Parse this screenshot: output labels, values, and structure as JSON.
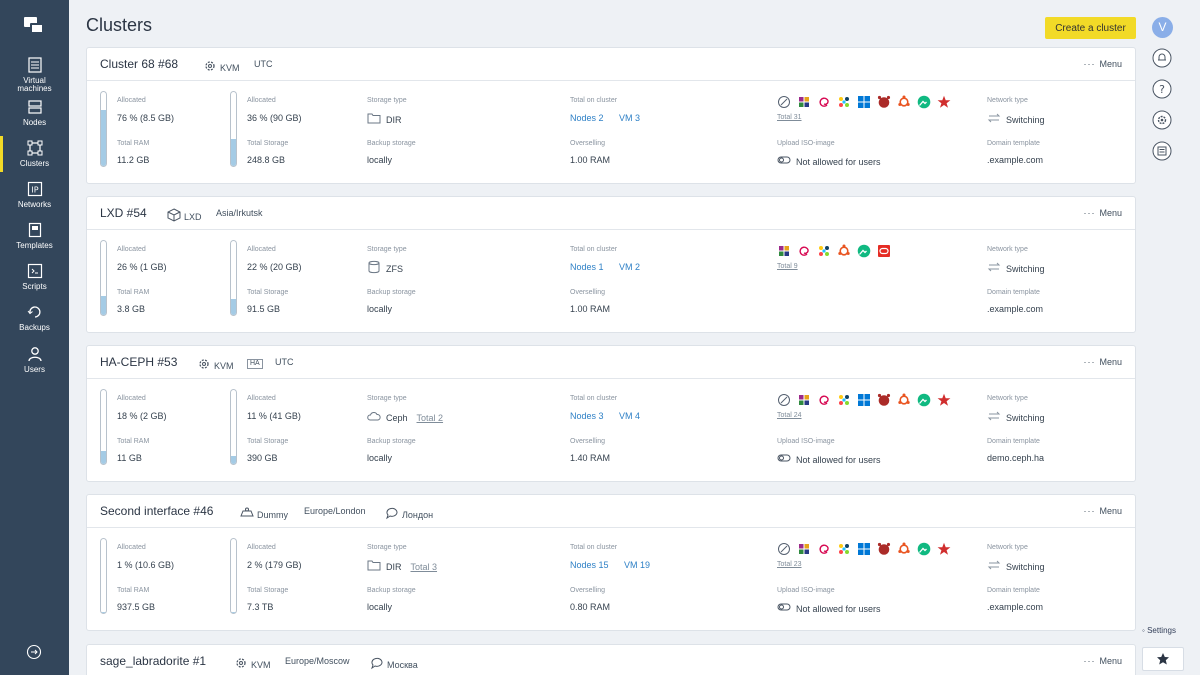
{
  "sidebar": {
    "items": [
      {
        "label_1": "Virtual",
        "label_2": "machines",
        "icon": "virtual-machines-icon"
      },
      {
        "label": "Nodes",
        "icon": "nodes-icon"
      },
      {
        "label": "Clusters",
        "icon": "clusters-icon",
        "active": true
      },
      {
        "label": "Networks",
        "icon": "networks-icon"
      },
      {
        "label": "Templates",
        "icon": "templates-icon"
      },
      {
        "label": "Scripts",
        "icon": "scripts-icon"
      },
      {
        "label": "Backups",
        "icon": "backups-icon"
      },
      {
        "label": "Users",
        "icon": "users-icon"
      }
    ]
  },
  "header": {
    "title": "Clusters",
    "create_label": "Create a cluster"
  },
  "rail": {
    "avatar": "V",
    "settings_label": "Settings"
  },
  "labels": {
    "allocated": "Allocated",
    "total_ram": "Total RAM",
    "total_storage": "Total Storage",
    "storage_type": "Storage type",
    "backup_storage": "Backup storage",
    "total_on_cluster": "Total on cluster",
    "overselling": "Overselling",
    "upload_iso": "Upload ISO-image",
    "network_type": "Network type",
    "domain_template": "Domain template",
    "menu": "Menu"
  },
  "clusters": [
    {
      "name": "Cluster 68  #68",
      "virt": "KVM",
      "tz": "UTC",
      "ram_alloc": "76 % (8.5 GB)",
      "ram_pct": 76,
      "ram_total": "11.2 GB",
      "storage_alloc": "36 % (90 GB)",
      "storage_pct": 36,
      "storage_total": "248.8 GB",
      "storage_type": "DIR",
      "storage_extra": "",
      "backup": "locally",
      "nodes": "Nodes 2",
      "vms": "VM 3",
      "overselling": "1.00 RAM",
      "os_total": "Total 31",
      "iso_label": "Upload ISO-image",
      "iso": "Not allowed for users",
      "network": "Switching",
      "domain": ".example.com"
    },
    {
      "name": "LXD  #54",
      "virt": "LXD",
      "tz": "Asia/Irkutsk",
      "ram_alloc": "26 % (1 GB)",
      "ram_pct": 26,
      "ram_total": "3.8 GB",
      "storage_alloc": "22 % (20 GB)",
      "storage_pct": 22,
      "storage_total": "91.5 GB",
      "storage_type": "ZFS",
      "storage_extra": "",
      "backup": "locally",
      "nodes": "Nodes 1",
      "vms": "VM 2",
      "overselling": "1.00 RAM",
      "os_total": "Total 9",
      "iso_label": "",
      "iso": "",
      "network": "Switching",
      "domain": ".example.com"
    },
    {
      "name": "HA-CEPH  #53",
      "virt": "KVM",
      "ha": "HA",
      "tz": "UTC",
      "ram_alloc": "18 % (2 GB)",
      "ram_pct": 18,
      "ram_total": "11 GB",
      "storage_alloc": "11 % (41 GB)",
      "storage_pct": 11,
      "storage_total": "390 GB",
      "storage_type": "Ceph",
      "storage_extra": "Total 2",
      "backup": "locally",
      "nodes": "Nodes 3",
      "vms": "VM 4",
      "overselling": "1.40 RAM",
      "os_total": "Total 24",
      "iso_label": "Upload ISO-image",
      "iso": "Not allowed for users",
      "network": "Switching",
      "domain": "demo.ceph.ha"
    },
    {
      "name": "Second interface  #46",
      "virt": "Dummy",
      "tz": "Europe/London",
      "location": "Лондон",
      "ram_alloc": "1 % (10.6 GB)",
      "ram_pct": 1,
      "ram_total": "937.5 GB",
      "storage_alloc": "2 % (179 GB)",
      "storage_pct": 2,
      "storage_total": "7.3 TB",
      "storage_type": "DIR",
      "storage_extra": "Total 3",
      "backup": "locally",
      "nodes": "Nodes 15",
      "vms": "VM 19",
      "overselling": "0.80 RAM",
      "os_total": "Total 23",
      "iso_label": "Upload ISO-image",
      "iso": "Not allowed for users",
      "network": "Switching",
      "domain": ".example.com"
    },
    {
      "name": "sage_labradorite  #1",
      "virt": "KVM",
      "tz": "Europe/Moscow",
      "location": "Москва"
    }
  ]
}
